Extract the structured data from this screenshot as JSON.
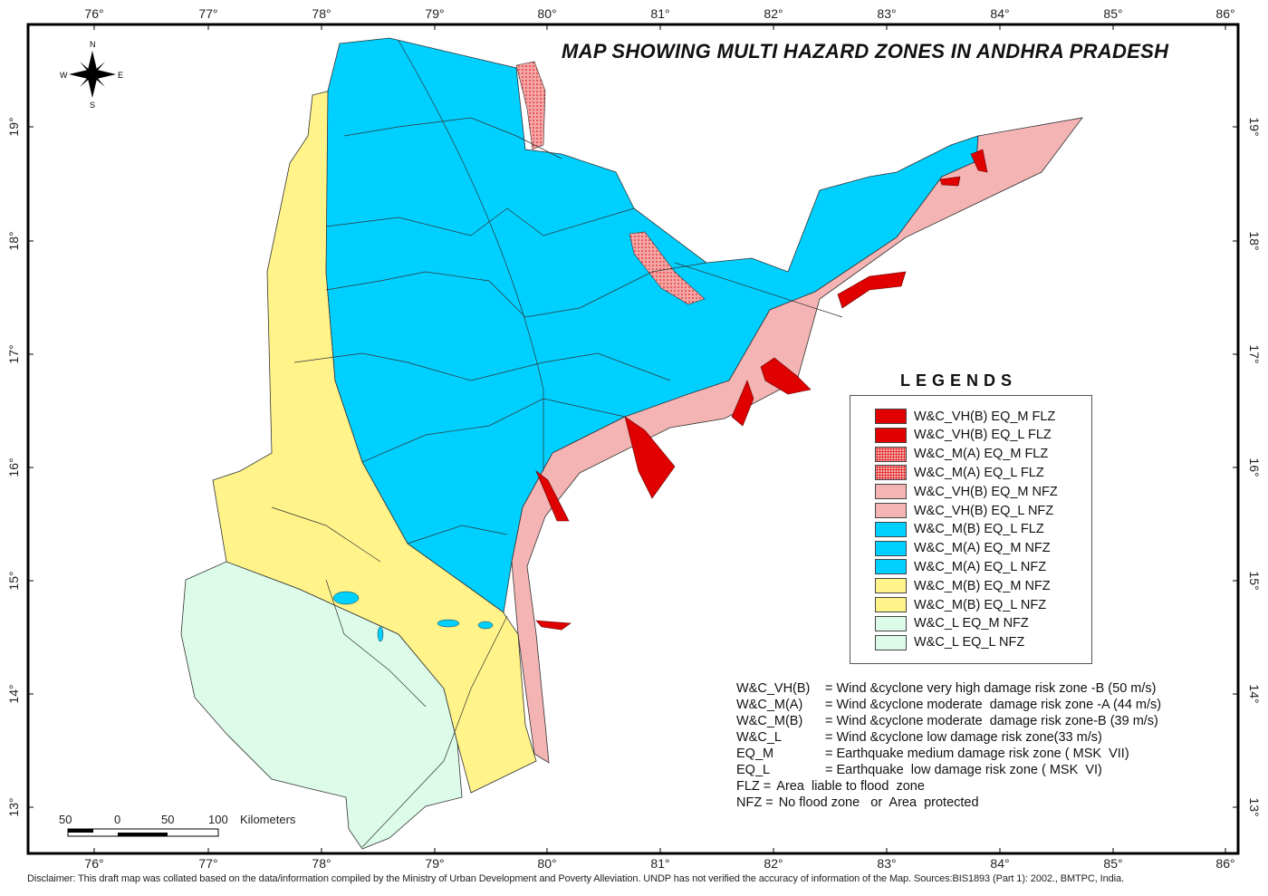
{
  "title": "MAP SHOWING MULTI HAZARD ZONES IN  ANDHRA PRADESH",
  "compass": {
    "n": "N",
    "s": "S",
    "e": "E",
    "w": "W"
  },
  "longitude_ticks": [
    "76°",
    "77°",
    "78°",
    "79°",
    "80°",
    "81°",
    "82°",
    "83°",
    "84°",
    "85°",
    "86°"
  ],
  "latitude_ticks": [
    "19°",
    "18°",
    "17°",
    "16°",
    "15°",
    "14°",
    "13°"
  ],
  "scale_bar": {
    "labels": [
      "50",
      "0",
      "50",
      "100"
    ],
    "unit": "Kilometers"
  },
  "legend": {
    "title": "LEGENDS",
    "items": [
      {
        "label": "W&C_VH(B) EQ_M FLZ",
        "color": "#e00000",
        "pattern": "solid"
      },
      {
        "label": "W&C_VH(B) EQ_L FLZ",
        "color": "#e00000",
        "pattern": "solid"
      },
      {
        "label": "W&C_M(A) EQ_M FLZ",
        "color": "#f4a6a6",
        "pattern": "dotted-red"
      },
      {
        "label": "W&C_M(A) EQ_L FLZ",
        "color": "#f4a6a6",
        "pattern": "dotted-red"
      },
      {
        "label": "W&C_VH(B) EQ_M NFZ",
        "color": "#f4b4b4",
        "pattern": "solid"
      },
      {
        "label": "W&C_VH(B) EQ_L NFZ",
        "color": "#f4b4b4",
        "pattern": "solid"
      },
      {
        "label": "W&C_M(B) EQ_L FLZ",
        "color": "#00d0ff",
        "pattern": "solid"
      },
      {
        "label": "W&C_M(A) EQ_M NFZ",
        "color": "#00d0ff",
        "pattern": "solid"
      },
      {
        "label": "W&C_M(A) EQ_L NFZ",
        "color": "#00d0ff",
        "pattern": "solid"
      },
      {
        "label": "W&C_M(B) EQ_M NFZ",
        "color": "#fff38a",
        "pattern": "solid"
      },
      {
        "label": "W&C_M(B) EQ_L NFZ",
        "color": "#fff38a",
        "pattern": "solid"
      },
      {
        "label": "W&C_L EQ_M NFZ",
        "color": "#dcfbe8",
        "pattern": "solid"
      },
      {
        "label": "W&C_L EQ_L NFZ",
        "color": "#dcfbe8",
        "pattern": "solid"
      }
    ]
  },
  "definitions": [
    {
      "key": "W&C_VH(B)",
      "value": "= Wind &cyclone very high damage risk zone -B (50 m/s)"
    },
    {
      "key": "W&C_M(A)",
      "value": "= Wind &cyclone moderate  damage risk zone -A (44 m/s)"
    },
    {
      "key": "W&C_M(B)",
      "value": "= Wind &cyclone moderate  damage risk zone-B (39 m/s)"
    },
    {
      "key": "W&C_L",
      "value": "= Wind &cyclone low damage risk zone(33 m/s)"
    },
    {
      "key": "EQ_M",
      "value": "= Earthquake medium damage risk zone ( MSK  VII)"
    },
    {
      "key": "EQ_L",
      "value": "= Earthquake  low damage risk zone ( MSK  VI)"
    },
    {
      "key": "FLZ =",
      "value": "Area  liable to flood  zone"
    },
    {
      "key": "NFZ =",
      "value": "No flood zone   or  Area  protected"
    }
  ],
  "disclaimer": "Disclaimer:  This draft map was collated based on the data/information compiled by the Ministry of Urban Development and Poverty Alleviation.  UNDP has not verified the accuracy of information of the Map. Sources:BIS1893 (Part 1): 2002.,  BMTPC, India."
}
